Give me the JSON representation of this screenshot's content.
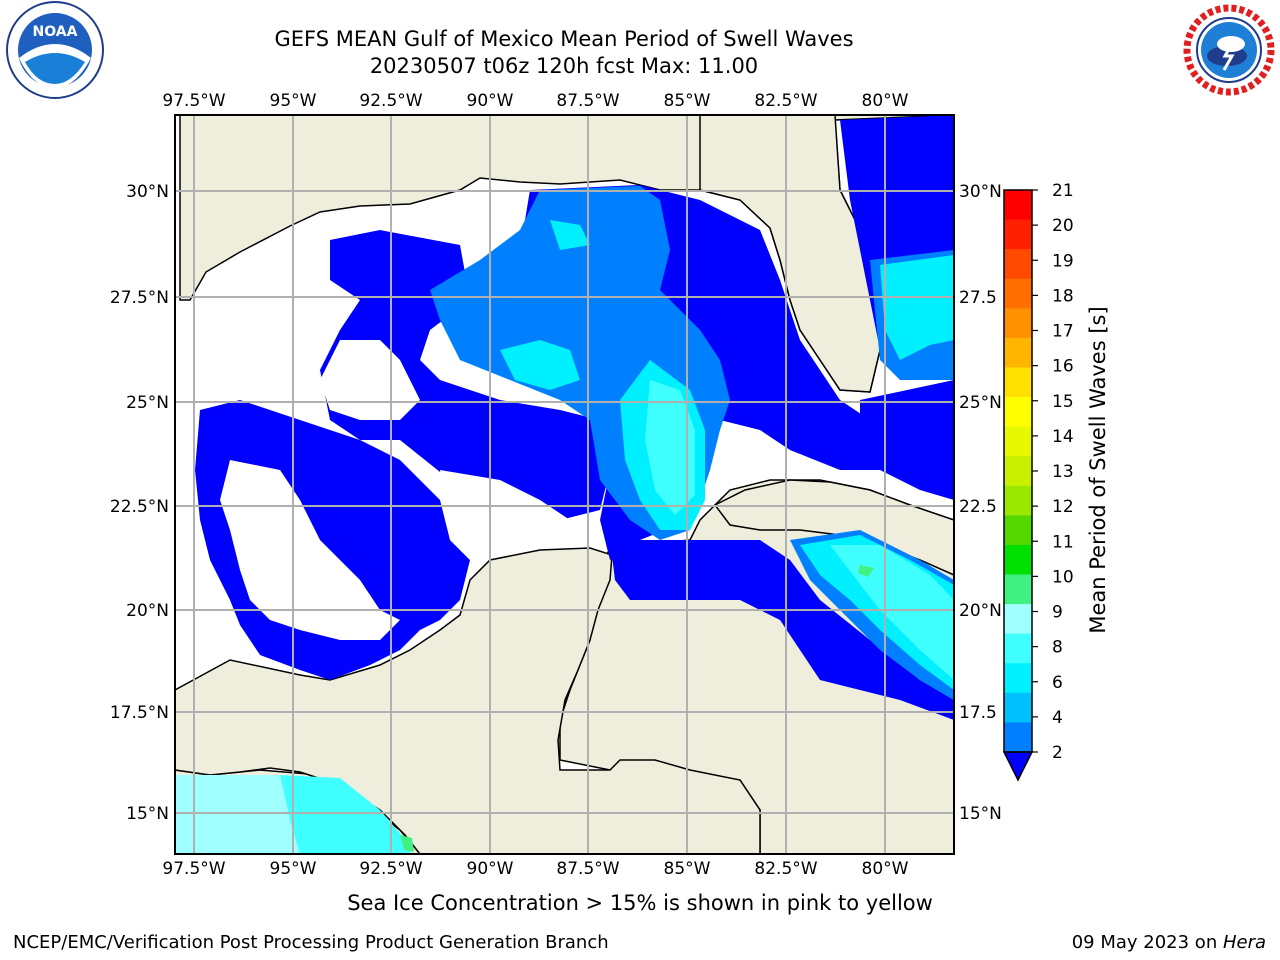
{
  "title_line1": "GEFS MEAN Gulf of Mexico Mean Period of Swell Waves",
  "title_line2": "20230507 t06z 120h fcst   Max: 11.00",
  "longitude_labels": [
    "97.5°W",
    "95°W",
    "92.5°W",
    "90°W",
    "87.5°W",
    "85°W",
    "82.5°W",
    "80°W"
  ],
  "latitude_labels_left": [
    "30°N",
    "27.5°N",
    "25°N",
    "22.5°N",
    "20°N",
    "17.5°N",
    "15°N"
  ],
  "latitude_labels_right": [
    "30°N",
    "27.5",
    "25°N",
    "22.5",
    "20°N",
    "17.5",
    "15°N"
  ],
  "colorbar": {
    "label": "Mean Period of Swell Waves [s]",
    "ticks": [
      "21",
      "20",
      "19",
      "18",
      "17",
      "16",
      "15",
      "14",
      "13",
      "12",
      "11",
      "10",
      "9",
      "8",
      "6",
      "4",
      "2"
    ],
    "colors": [
      "#ff0000",
      "#ff2000",
      "#ff4a00",
      "#ff6e00",
      "#ff9000",
      "#ffb400",
      "#ffe000",
      "#ffff00",
      "#e8f800",
      "#c8f000",
      "#9ae800",
      "#54d800",
      "#00e000",
      "#40f080",
      "#a0ffff",
      "#40ffff",
      "#00f0ff",
      "#00c0ff",
      "#0080ff"
    ],
    "extend_color": "#0000ff"
  },
  "colors": {
    "land": "#efeedc",
    "water_blue": "#0000ff",
    "swell_2_4": "#0080ff",
    "swell_4_6": "#00f0ff",
    "swell_6_8": "#40ffff",
    "swell_8_9": "#a0ffff",
    "swell_9_10": "#40f080"
  },
  "logos": {
    "left": "NOAA",
    "right": "NATIONAL WEATHER SERVICE"
  },
  "caption": "Sea Ice Concentration > 15% is shown in pink to yellow",
  "footer_left": "NCEP/EMC/Verification Post Processing Product Generation Branch",
  "footer_right_date": "09 May 2023 on ",
  "footer_right_host": "Hera"
}
